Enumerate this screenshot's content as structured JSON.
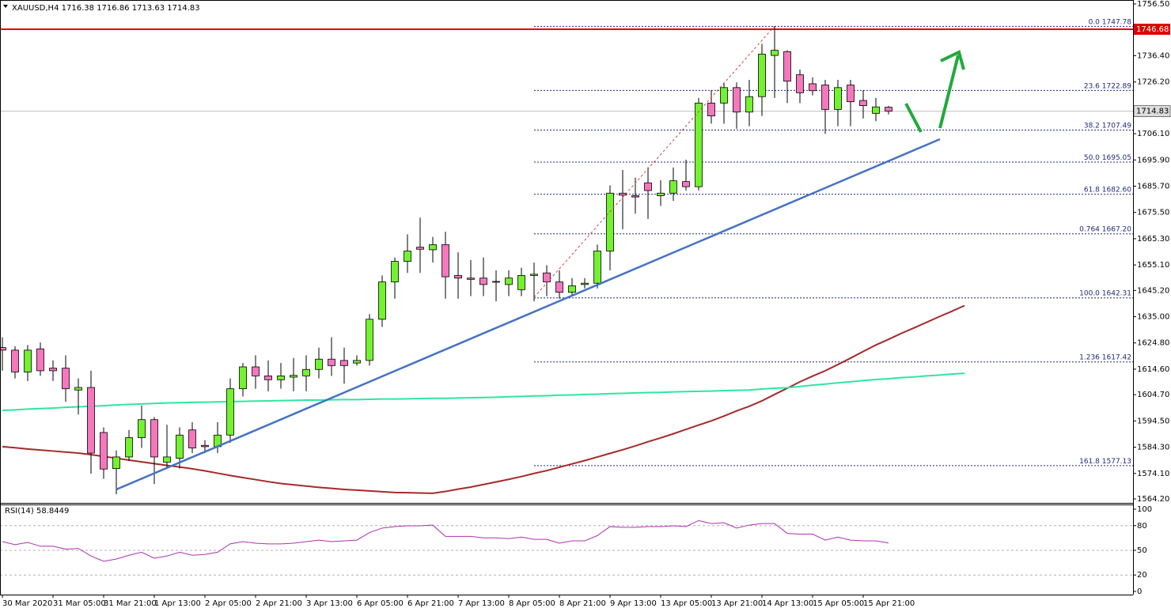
{
  "chart_data": {
    "type": "candlestick",
    "symbol": "XAUUSD,H4",
    "categories": [
      "30 Mar 2020",
      null,
      null,
      null,
      "31 Mar 05:00",
      null,
      null,
      null,
      "31 Mar 21:00",
      null,
      null,
      null,
      "1 Apr 13:00",
      null,
      null,
      null,
      "2 Apr 05:00",
      null,
      null,
      null,
      "2 Apr 21:00",
      null,
      null,
      null,
      "3 Apr 13:00",
      null,
      null,
      null,
      "6 Apr 05:00",
      null,
      null,
      null,
      "6 Apr 21:00",
      null,
      null,
      null,
      "7 Apr 13:00",
      null,
      null,
      null,
      "8 Apr 05:00",
      null,
      null,
      null,
      "8 Apr 21:00",
      null,
      null,
      null,
      "9 Apr 13:00",
      null,
      null,
      null,
      "13 Apr 05:00",
      null,
      null,
      null,
      "13 Apr 21:00",
      null,
      null,
      null,
      "14 Apr 13:00",
      null,
      null,
      null,
      "15 Apr 05:00",
      null,
      null,
      null,
      "15 Apr 21:00",
      null,
      null,
      null,
      null,
      null,
      null,
      null,
      null
    ],
    "open": [
      1623,
      1622,
      1613.5,
      1622.5,
      1615,
      1615,
      1606.5,
      1607.5,
      1590,
      1576,
      1580.5,
      1588,
      1595,
      1578.5,
      1580,
      1591,
      1585,
      1584.5,
      1589,
      1607,
      1615.5,
      1612,
      1610.5,
      1611.5,
      1612,
      1614.5,
      1618.5,
      1618,
      1617,
      1618,
      1634,
      1648.5,
      1656.5,
      1662,
      1661,
      1663,
      1651,
      1650,
      1650,
      1648.7,
      1647.5,
      1645.5,
      1651,
      1652,
      1648.5,
      1644.5,
      1647.5,
      1648,
      1660.5,
      1683,
      1682,
      1687,
      1682,
      1683,
      1687.5,
      1685.5,
      1718,
      1718,
      1724,
      1714.5,
      1720.5,
      1736.5,
      1738,
      1729,
      1725.5,
      1725,
      1715.5,
      1725,
      1719,
      1714,
      1716.38,
      null,
      null,
      null,
      null,
      null,
      null
    ],
    "high": [
      1627,
      1623.5,
      1624,
      1625,
      1618,
      1620,
      1611,
      1614,
      1592,
      1583,
      1591,
      1600.5,
      1596,
      1593,
      1592,
      1594,
      1587,
      1594,
      1611,
      1617,
      1620,
      1618,
      1617,
      1619,
      1620,
      1623,
      1627,
      1623,
      1620,
      1636,
      1651,
      1658,
      1667,
      1673.5,
      1666,
      1668,
      1660,
      1657,
      1658,
      1653,
      1653,
      1654,
      1656,
      1655,
      1653,
      1650,
      1650,
      1663,
      1686,
      1692,
      1689,
      1693,
      1688,
      1693,
      1696,
      1720,
      1723,
      1726,
      1726,
      1727,
      1741,
      1747.78,
      1738.5,
      1731,
      1728,
      1727,
      1727,
      1727,
      1723,
      1720,
      1716.86,
      null,
      null,
      null,
      null,
      null,
      null
    ],
    "low": [
      1614,
      1611,
      1610,
      1612,
      1610,
      1602,
      1597,
      1574,
      1572,
      1566,
      1579,
      1584,
      1570,
      1576,
      1576,
      1582,
      1582,
      1582,
      1586,
      1604,
      1607,
      1606,
      1607,
      1606,
      1606,
      1611,
      1612,
      1609,
      1616,
      1616,
      1631,
      1642,
      1652,
      1652,
      1656,
      1642,
      1642,
      1643,
      1643,
      1641,
      1643,
      1643,
      1641,
      1643,
      1642,
      1643,
      1646,
      1646,
      1653,
      1669,
      1675,
      1673,
      1678,
      1680,
      1684,
      1684,
      1710,
      1710,
      1708,
      1709,
      1713,
      1720,
      1718,
      1718,
      1721,
      1706,
      1709,
      1709,
      1712,
      1711,
      1713.63,
      null,
      null,
      null,
      null,
      null,
      null
    ],
    "close": [
      1622,
      1613.5,
      1622,
      1614,
      1614,
      1607,
      1607.5,
      1582,
      1575.8,
      1580.5,
      1588,
      1595,
      1580.5,
      1580.5,
      1589,
      1584,
      1584.5,
      1589,
      1607,
      1615.5,
      1612,
      1610.5,
      1612,
      1612.2,
      1614.5,
      1618.5,
      1616,
      1616,
      1618,
      1634,
      1648.5,
      1656.5,
      1660.5,
      1661.2,
      1663,
      1650.5,
      1650,
      1649.5,
      1647.5,
      1648.4,
      1650,
      1651,
      1651.5,
      1648.5,
      1644.5,
      1647,
      1648,
      1660.5,
      1683,
      1682.2,
      1681.5,
      1684,
      1683,
      1687.8,
      1685.5,
      1718,
      1713,
      1724,
      1714.5,
      1720.5,
      1737,
      1738.5,
      1726.5,
      1722,
      1722.8,
      1715.5,
      1724,
      1718.5,
      1717,
      1716.5,
      1714.83,
      null,
      null,
      null,
      null,
      null,
      null
    ],
    "up_color": "#73f230",
    "down_color": "#f577bd",
    "moving_averages": [
      {
        "color": "#a52a2a",
        "values": [
          1584.5,
          1584.1,
          1583.6,
          1583.2,
          1582.8,
          1582.4,
          1582.0,
          1581.4,
          1580.7,
          1580.0,
          1579.3,
          1578.6,
          1577.9,
          1577.2,
          1576.6,
          1575.9,
          1575.1,
          1574.2,
          1573.3,
          1572.5,
          1571.7,
          1570.9,
          1570.2,
          1569.7,
          1569.2,
          1568.7,
          1568.3,
          1567.9,
          1567.6,
          1567.3,
          1567.0,
          1566.7,
          1566.6,
          1566.5,
          1566.4,
          1567.1,
          1568.0,
          1568.8,
          1569.8,
          1570.8,
          1571.8,
          1572.9,
          1574.1,
          1575.2,
          1576.5,
          1577.8,
          1579.1,
          1580.5,
          1581.9,
          1583.3,
          1584.8,
          1586.4,
          1587.9,
          1589.5,
          1591.2,
          1592.9,
          1594.5,
          1596.4,
          1598.4,
          1600.2,
          1602.3,
          1604.8,
          1607.2,
          1609.7,
          1611.9,
          1614.0,
          1616.4,
          1618.9,
          1621.5,
          1624.0,
          1626.2,
          1628.5,
          1630.6,
          1632.8,
          1635.0,
          1637.1,
          1639.3
        ]
      },
      {
        "color": "#2ee6a0",
        "values": [
          1598.6,
          1598.8,
          1599.1,
          1599.3,
          1599.5,
          1599.8,
          1600.0,
          1600.2,
          1600.4,
          1600.7,
          1600.9,
          1601.1,
          1601.3,
          1601.5,
          1601.6,
          1601.7,
          1601.8,
          1601.9,
          1602.0,
          1602.1,
          1602.2,
          1602.3,
          1602.4,
          1602.5,
          1602.6,
          1602.6,
          1602.7,
          1602.8,
          1602.8,
          1602.9,
          1603.0,
          1603.0,
          1603.1,
          1603.2,
          1603.3,
          1603.3,
          1603.4,
          1603.5,
          1603.6,
          1603.7,
          1603.9,
          1604.0,
          1604.2,
          1604.3,
          1604.5,
          1604.6,
          1604.8,
          1604.9,
          1605.1,
          1605.2,
          1605.4,
          1605.5,
          1605.6,
          1605.8,
          1605.9,
          1606.0,
          1606.1,
          1606.3,
          1606.4,
          1606.5,
          1606.9,
          1607.2,
          1607.4,
          1607.9,
          1608.4,
          1608.8,
          1609.3,
          1609.7,
          1610.2,
          1610.6,
          1610.9,
          1611.3,
          1611.6,
          1612.0,
          1612.3,
          1612.7,
          1613.0
        ]
      }
    ],
    "ylim": [
      1562.66,
      1758.04
    ],
    "yticks": [
      {
        "value": 1756.5,
        "label": "1756.50"
      },
      {
        "value": 1736.4,
        "label": "1736.40"
      },
      {
        "value": 1726.2,
        "label": "1726.20"
      },
      {
        "value": 1706.1,
        "label": "1706.10"
      },
      {
        "value": 1695.9,
        "label": "1695.90"
      },
      {
        "value": 1685.7,
        "label": "1685.70"
      },
      {
        "value": 1675.5,
        "label": "1675.50"
      },
      {
        "value": 1665.3,
        "label": "1665.30"
      },
      {
        "value": 1655.1,
        "label": "1655.10"
      },
      {
        "value": 1645.2,
        "label": "1645.20"
      },
      {
        "value": 1635,
        "label": "1635.00"
      },
      {
        "value": 1624.8,
        "label": "1624.80"
      },
      {
        "value": 1614.6,
        "label": "1614.60"
      },
      {
        "value": 1604.7,
        "label": "1604.70"
      },
      {
        "value": 1594.5,
        "label": "1594.50"
      },
      {
        "value": 1584.3,
        "label": "1584.30"
      },
      {
        "value": 1574.1,
        "label": "1574.10"
      },
      {
        "value": 1564.2,
        "label": "1564.20"
      }
    ],
    "fibonacci": {
      "color": "#1f2a7a",
      "levels": [
        {
          "ratio": "0.0",
          "price": 1747.78
        },
        {
          "ratio": "23.6",
          "price": 1722.89
        },
        {
          "ratio": "38.2",
          "price": 1707.49
        },
        {
          "ratio": "50.0",
          "price": 1695.05
        },
        {
          "ratio": "61.8",
          "price": {
            "value": 1682.6,
            "label": "1682.60"
          }
        },
        {
          "ratio": "0.764",
          "price": {
            "value": 1667.2,
            "label": "1667.20"
          }
        },
        {
          "ratio": "100.0",
          "price": 1642.31
        },
        {
          "ratio": "1.236",
          "price": 1617.42
        },
        {
          "ratio": "161.8",
          "price": 1577.13
        }
      ]
    },
    "price_line": {
      "value": 1746.68,
      "color": "#e00000"
    },
    "current_price": {
      "value": 1714.83,
      "color": "#c0c0c0"
    },
    "rsi": {
      "label": "RSI(14)",
      "value": 58.8449,
      "color": "#b030b0",
      "values": [
        60.6,
        56.9,
        59.6,
        55.0,
        55.0,
        51.4,
        52.3,
        43.1,
        36.7,
        39.4,
        44.0,
        47.7,
        40.4,
        43.1,
        47.7,
        44.0,
        45.0,
        47.7,
        57.8,
        60.6,
        58.7,
        57.8,
        57.8,
        58.7,
        60.6,
        62.4,
        60.6,
        61.5,
        62.4,
        71.6,
        77.1,
        78.9,
        79.8,
        79.8,
        80.7,
        67.0,
        67.0,
        67.0,
        65.1,
        65.1,
        64.2,
        66.1,
        63.3,
        63.3,
        58.7,
        61.5,
        61.5,
        67.9,
        78.9,
        78.0,
        78.0,
        78.9,
        78.9,
        79.8,
        78.9,
        86.2,
        82.6,
        83.5,
        77.1,
        80.7,
        82.6,
        82.6,
        70.6,
        69.7,
        69.7,
        62.4,
        66.1,
        62.4,
        61.5,
        61.5,
        58.8449,
        null,
        null,
        null,
        null,
        null,
        null
      ],
      "ylim": [
        0,
        100
      ],
      "yticks": [
        100,
        80,
        50,
        20,
        0
      ],
      "levels": [
        80,
        50,
        20
      ]
    }
  }
}
